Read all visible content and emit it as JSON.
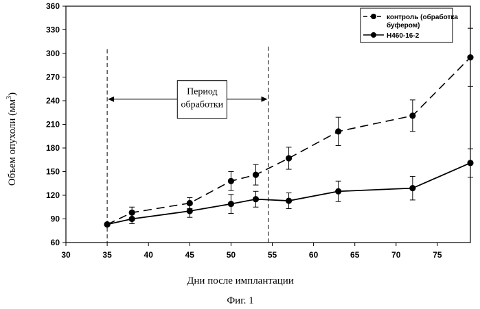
{
  "chart_data": {
    "type": "line",
    "xlabel": "Дни после имплантации",
    "ylabel": "Объем опухоли (мм",
    "ylabel_sup": "3",
    "ylabel_close": ")",
    "caption": "Фиг. 1",
    "xlim": [
      30,
      79
    ],
    "ylim": [
      60,
      360
    ],
    "xticks": [
      30,
      35,
      40,
      45,
      50,
      55,
      60,
      65,
      70,
      75
    ],
    "yticks": [
      60,
      90,
      120,
      150,
      180,
      210,
      240,
      270,
      300,
      330,
      360
    ],
    "grid": false,
    "legend_position": "top-right",
    "treatment_period": {
      "start": 35,
      "end": 54.5,
      "label_line1": "Период",
      "label_line2": "обработки"
    },
    "series": [
      {
        "name": "контроль (обработка буфером)",
        "legend_line1": "контроль (обработка",
        "legend_line2": "буфером)",
        "style": "dashed",
        "color": "#000000",
        "x": [
          35,
          38,
          45,
          50,
          53,
          57,
          63,
          72,
          79
        ],
        "y": [
          83,
          98,
          110,
          138,
          146,
          167,
          201,
          221,
          295
        ],
        "err": [
          0,
          7,
          7,
          12,
          13,
          14,
          18,
          20,
          37
        ]
      },
      {
        "name": "H460-16-2",
        "legend_line1": "H460-16-2",
        "style": "solid",
        "color": "#000000",
        "x": [
          35,
          38,
          45,
          50,
          53,
          57,
          63,
          72,
          79
        ],
        "y": [
          83,
          90,
          100,
          109,
          115,
          113,
          125,
          129,
          161
        ],
        "err": [
          0,
          6,
          8,
          12,
          10,
          10,
          13,
          15,
          18
        ]
      }
    ]
  }
}
